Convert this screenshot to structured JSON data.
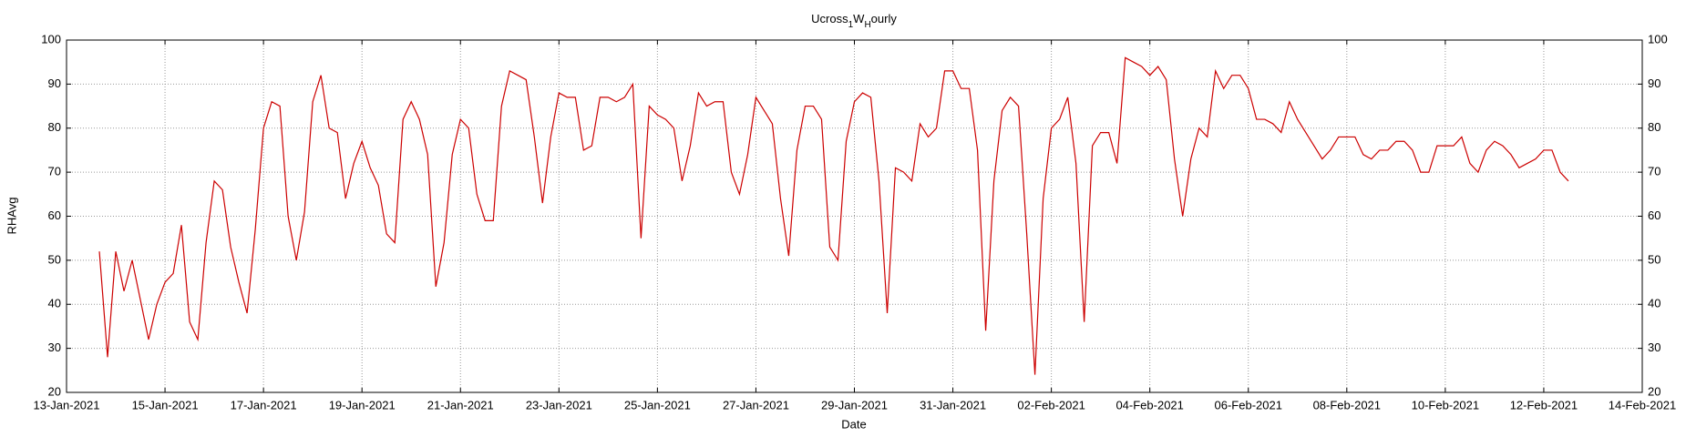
{
  "chart_data": {
    "type": "line",
    "title": "Ucross_1W_Hourly",
    "x_label": "Date",
    "y_label": "RHAvg",
    "color": "#cc0000",
    "grid": true,
    "xlim": [
      "2021-01-13",
      "2021-02-14"
    ],
    "xticks": [
      {
        "value": "2021-01-13",
        "label": "13-Jan-2021"
      },
      {
        "value": "2021-01-15",
        "label": "15-Jan-2021"
      },
      {
        "value": "2021-01-17",
        "label": "17-Jan-2021"
      },
      {
        "value": "2021-01-19",
        "label": "19-Jan-2021"
      },
      {
        "value": "2021-01-21",
        "label": "21-Jan-2021"
      },
      {
        "value": "2021-01-23",
        "label": "23-Jan-2021"
      },
      {
        "value": "2021-01-25",
        "label": "25-Jan-2021"
      },
      {
        "value": "2021-01-27",
        "label": "27-Jan-2021"
      },
      {
        "value": "2021-01-29",
        "label": "29-Jan-2021"
      },
      {
        "value": "2021-01-31",
        "label": "31-Jan-2021"
      },
      {
        "value": "2021-02-02",
        "label": "02-Feb-2021"
      },
      {
        "value": "2021-02-04",
        "label": "04-Feb-2021"
      },
      {
        "value": "2021-02-06",
        "label": "06-Feb-2021"
      },
      {
        "value": "2021-02-08",
        "label": "08-Feb-2021"
      },
      {
        "value": "2021-02-10",
        "label": "10-Feb-2021"
      },
      {
        "value": "2021-02-12",
        "label": "12-Feb-2021"
      },
      {
        "value": "2021-02-14",
        "label": "14-Feb-2021"
      }
    ],
    "ylim": [
      20,
      100
    ],
    "yticks": [
      20,
      30,
      40,
      50,
      60,
      70,
      80,
      90,
      100
    ],
    "x": [
      "2021-01-13 16:00",
      "2021-01-13 20:00",
      "2021-01-14 00:00",
      "2021-01-14 04:00",
      "2021-01-14 08:00",
      "2021-01-14 12:00",
      "2021-01-14 16:00",
      "2021-01-14 20:00",
      "2021-01-15 00:00",
      "2021-01-15 04:00",
      "2021-01-15 08:00",
      "2021-01-15 12:00",
      "2021-01-15 16:00",
      "2021-01-15 20:00",
      "2021-01-16 00:00",
      "2021-01-16 04:00",
      "2021-01-16 08:00",
      "2021-01-16 12:00",
      "2021-01-16 16:00",
      "2021-01-16 20:00",
      "2021-01-17 00:00",
      "2021-01-17 04:00",
      "2021-01-17 08:00",
      "2021-01-17 12:00",
      "2021-01-17 16:00",
      "2021-01-17 20:00",
      "2021-01-18 00:00",
      "2021-01-18 04:00",
      "2021-01-18 08:00",
      "2021-01-18 12:00",
      "2021-01-18 16:00",
      "2021-01-18 20:00",
      "2021-01-19 00:00",
      "2021-01-19 04:00",
      "2021-01-19 08:00",
      "2021-01-19 12:00",
      "2021-01-19 16:00",
      "2021-01-19 20:00",
      "2021-01-20 00:00",
      "2021-01-20 04:00",
      "2021-01-20 08:00",
      "2021-01-20 12:00",
      "2021-01-20 16:00",
      "2021-01-20 20:00",
      "2021-01-21 00:00",
      "2021-01-21 04:00",
      "2021-01-21 08:00",
      "2021-01-21 12:00",
      "2021-01-21 16:00",
      "2021-01-21 20:00",
      "2021-01-22 00:00",
      "2021-01-22 04:00",
      "2021-01-22 08:00",
      "2021-01-22 12:00",
      "2021-01-22 16:00",
      "2021-01-22 20:00",
      "2021-01-23 00:00",
      "2021-01-23 04:00",
      "2021-01-23 08:00",
      "2021-01-23 12:00",
      "2021-01-23 16:00",
      "2021-01-23 20:00",
      "2021-01-24 00:00",
      "2021-01-24 04:00",
      "2021-01-24 08:00",
      "2021-01-24 12:00",
      "2021-01-24 16:00",
      "2021-01-24 20:00",
      "2021-01-25 00:00",
      "2021-01-25 04:00",
      "2021-01-25 08:00",
      "2021-01-25 12:00",
      "2021-01-25 16:00",
      "2021-01-25 20:00",
      "2021-01-26 00:00",
      "2021-01-26 04:00",
      "2021-01-26 08:00",
      "2021-01-26 12:00",
      "2021-01-26 16:00",
      "2021-01-26 20:00",
      "2021-01-27 00:00",
      "2021-01-27 04:00",
      "2021-01-27 08:00",
      "2021-01-27 12:00",
      "2021-01-27 16:00",
      "2021-01-27 20:00",
      "2021-01-28 00:00",
      "2021-01-28 04:00",
      "2021-01-28 08:00",
      "2021-01-28 12:00",
      "2021-01-28 16:00",
      "2021-01-28 20:00",
      "2021-01-29 00:00",
      "2021-01-29 04:00",
      "2021-01-29 08:00",
      "2021-01-29 12:00",
      "2021-01-29 16:00",
      "2021-01-29 20:00",
      "2021-01-30 00:00",
      "2021-01-30 04:00",
      "2021-01-30 08:00",
      "2021-01-30 12:00",
      "2021-01-30 16:00",
      "2021-01-30 20:00",
      "2021-01-31 00:00",
      "2021-01-31 04:00",
      "2021-01-31 08:00",
      "2021-01-31 12:00",
      "2021-01-31 16:00",
      "2021-01-31 20:00",
      "2021-02-01 00:00",
      "2021-02-01 04:00",
      "2021-02-01 08:00",
      "2021-02-01 12:00",
      "2021-02-01 16:00",
      "2021-02-01 20:00",
      "2021-02-02 00:00",
      "2021-02-02 04:00",
      "2021-02-02 08:00",
      "2021-02-02 12:00",
      "2021-02-02 16:00",
      "2021-02-02 20:00",
      "2021-02-03 00:00",
      "2021-02-03 04:00",
      "2021-02-03 08:00",
      "2021-02-03 12:00",
      "2021-02-03 16:00",
      "2021-02-03 20:00",
      "2021-02-04 00:00",
      "2021-02-04 04:00",
      "2021-02-04 08:00",
      "2021-02-04 12:00",
      "2021-02-04 16:00",
      "2021-02-04 20:00",
      "2021-02-05 00:00",
      "2021-02-05 04:00",
      "2021-02-05 08:00",
      "2021-02-05 12:00",
      "2021-02-05 16:00",
      "2021-02-05 20:00",
      "2021-02-06 00:00",
      "2021-02-06 04:00",
      "2021-02-06 08:00",
      "2021-02-06 12:00",
      "2021-02-06 16:00",
      "2021-02-06 20:00",
      "2021-02-07 00:00",
      "2021-02-07 04:00",
      "2021-02-07 08:00",
      "2021-02-07 12:00",
      "2021-02-07 16:00",
      "2021-02-07 20:00",
      "2021-02-08 00:00",
      "2021-02-08 04:00",
      "2021-02-08 08:00",
      "2021-02-08 12:00",
      "2021-02-08 16:00",
      "2021-02-08 20:00",
      "2021-02-09 00:00",
      "2021-02-09 04:00",
      "2021-02-09 08:00",
      "2021-02-09 12:00",
      "2021-02-09 16:00",
      "2021-02-09 20:00",
      "2021-02-10 00:00",
      "2021-02-10 04:00",
      "2021-02-10 08:00",
      "2021-02-10 12:00",
      "2021-02-10 16:00",
      "2021-02-10 20:00",
      "2021-02-11 00:00",
      "2021-02-11 04:00",
      "2021-02-11 08:00",
      "2021-02-11 12:00",
      "2021-02-11 16:00",
      "2021-02-11 20:00",
      "2021-02-12 00:00",
      "2021-02-12 04:00",
      "2021-02-12 08:00",
      "2021-02-12 12:00"
    ],
    "values": [
      52,
      28,
      52,
      43,
      50,
      41,
      32,
      40,
      45,
      47,
      58,
      36,
      32,
      54,
      68,
      66,
      53,
      45,
      38,
      57,
      80,
      86,
      85,
      60,
      50,
      61,
      86,
      92,
      80,
      79,
      64,
      72,
      77,
      71,
      67,
      56,
      54,
      82,
      86,
      82,
      74,
      44,
      54,
      74,
      82,
      80,
      65,
      59,
      59,
      85,
      93,
      92,
      91,
      78,
      63,
      78,
      88,
      87,
      87,
      75,
      76,
      87,
      87,
      86,
      87,
      90,
      55,
      85,
      83,
      82,
      80,
      68,
      76,
      88,
      85,
      86,
      86,
      70,
      65,
      74,
      87,
      84,
      81,
      64,
      51,
      75,
      85,
      85,
      82,
      53,
      50,
      77,
      86,
      88,
      87,
      68,
      38,
      71,
      70,
      68,
      81,
      78,
      80,
      93,
      93,
      89,
      89,
      75,
      34,
      68,
      84,
      87,
      85,
      56,
      24,
      64,
      80,
      82,
      87,
      72,
      36,
      76,
      79,
      79,
      72,
      96,
      95,
      94,
      92,
      94,
      91,
      73,
      60,
      73,
      80,
      78,
      93,
      89,
      92,
      92,
      89,
      82,
      82,
      81,
      79,
      86,
      82,
      79,
      76,
      73,
      75,
      78,
      78,
      78,
      74,
      73,
      75,
      75,
      77,
      77,
      75,
      70,
      70,
      76,
      76,
      76,
      78,
      72,
      70,
      75,
      77,
      76,
      74,
      71,
      72,
      73,
      75,
      75,
      70,
      68
    ]
  }
}
